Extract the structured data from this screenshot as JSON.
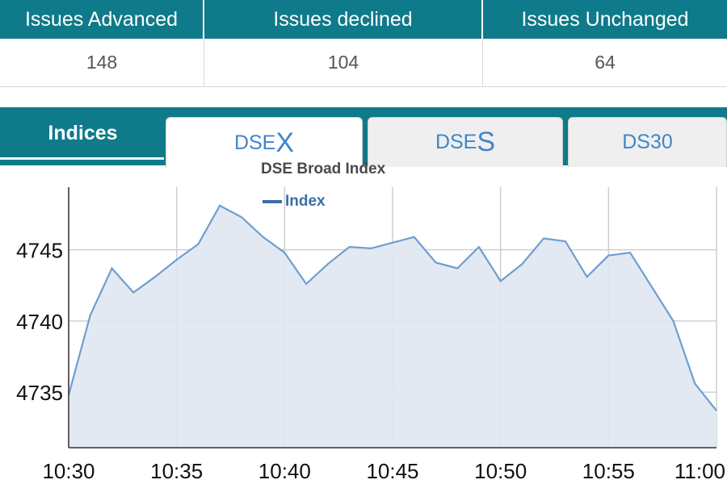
{
  "market_breadth": {
    "headers": [
      "Issues Advanced",
      "Issues declined",
      "Issues Unchanged"
    ],
    "values": [
      "148",
      "104",
      "64"
    ]
  },
  "tabs": {
    "section_label": "Indices",
    "items": [
      {
        "prefix": "DSE",
        "big": "X",
        "active": true
      },
      {
        "prefix": "DSE",
        "big": "S",
        "active": false
      },
      {
        "prefix": "DS30",
        "big": "",
        "active": false
      }
    ]
  },
  "colors": {
    "header_bg": "#0f7a8a",
    "tab_text": "#3f86c9",
    "series_line": "#6f9ed0",
    "series_fill": "#e0e7f1"
  },
  "chart_data": {
    "type": "area",
    "title": "DSE Broad Index",
    "legend": [
      {
        "name": "Index",
        "color": "#3a6ea5"
      }
    ],
    "legend_position": "top-center",
    "grid": true,
    "xlabel": "",
    "ylabel": "",
    "x_ticks": [
      "10:30",
      "10:35",
      "10:40",
      "10:45",
      "10:50",
      "10:55",
      "11:00"
    ],
    "y_ticks": [
      4735,
      4740,
      4745
    ],
    "xlim": [
      "10:30",
      "11:00"
    ],
    "ylim": [
      4731.1,
      4749.4
    ],
    "series": [
      {
        "name": "Index",
        "points": [
          [
            "10:30",
            4734.8
          ],
          [
            "10:31",
            4740.4
          ],
          [
            "10:32",
            4743.7
          ],
          [
            "10:33",
            4742.0
          ],
          [
            "10:34",
            4743.1
          ],
          [
            "10:35",
            4744.3
          ],
          [
            "10:36",
            4745.4
          ],
          [
            "10:37",
            4748.1
          ],
          [
            "10:38",
            4747.3
          ],
          [
            "10:39",
            4745.9
          ],
          [
            "10:40",
            4744.8
          ],
          [
            "10:41",
            4742.6
          ],
          [
            "10:42",
            4744.0
          ],
          [
            "10:43",
            4745.2
          ],
          [
            "10:44",
            4745.1
          ],
          [
            "10:45",
            4745.5
          ],
          [
            "10:46",
            4745.9
          ],
          [
            "10:47",
            4744.1
          ],
          [
            "10:48",
            4743.7
          ],
          [
            "10:49",
            4745.2
          ],
          [
            "10:50",
            4742.8
          ],
          [
            "10:51",
            4744.0
          ],
          [
            "10:52",
            4745.8
          ],
          [
            "10:53",
            4745.6
          ],
          [
            "10:54",
            4743.1
          ],
          [
            "10:55",
            4744.6
          ],
          [
            "10:56",
            4744.8
          ],
          [
            "10:57",
            4742.4
          ],
          [
            "10:58",
            4740.0
          ],
          [
            "10:59",
            4735.6
          ],
          [
            "11:00",
            4733.7
          ]
        ]
      }
    ]
  }
}
